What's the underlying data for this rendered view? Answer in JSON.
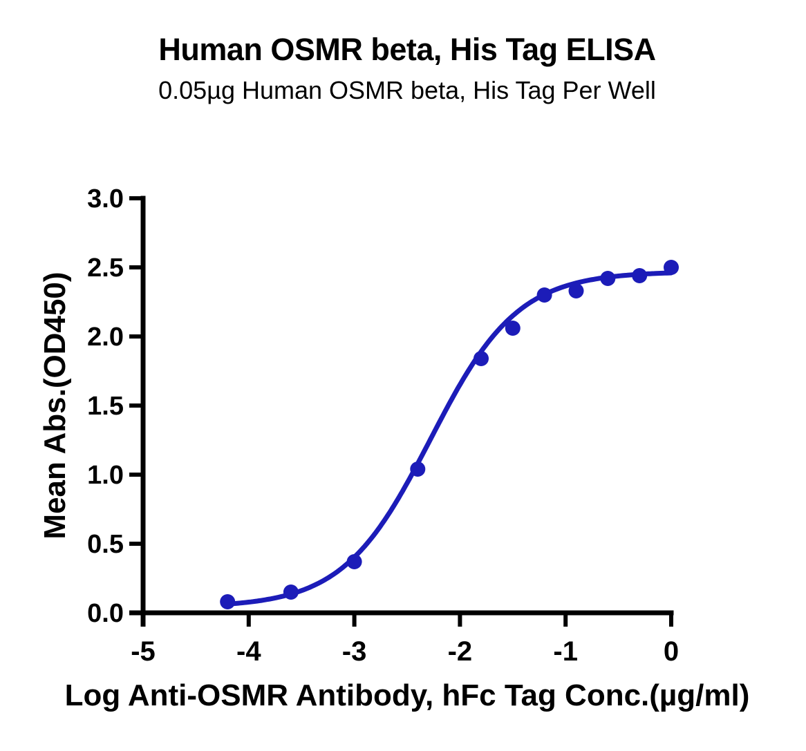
{
  "chart_data": {
    "type": "scatter",
    "title": "Human OSMR beta, His Tag ELISA",
    "subtitle": "0.05µg Human OSMR beta, His Tag Per Well",
    "xlabel": "Log Anti-OSMR Antibody, hFc Tag Conc.(µg/ml)",
    "ylabel": "Mean Abs.(OD450)",
    "xlim": [
      -5,
      0
    ],
    "ylim": [
      0,
      3
    ],
    "x_tick_labels": [
      "-5",
      "-4",
      "-3",
      "-2",
      "-1",
      "0"
    ],
    "y_tick_labels": [
      "0.0",
      "0.5",
      "1.0",
      "1.5",
      "2.0",
      "2.5",
      "3.0"
    ],
    "grid": false,
    "legend": false,
    "background_color": "#ffffff",
    "axis_color": "#000000",
    "series": [
      {
        "x": [
          -4.2,
          -3.6,
          -3.0,
          -2.4,
          -1.8,
          -1.5,
          -1.2,
          -0.9,
          -0.6,
          -0.3,
          0.0
        ],
        "y": [
          0.08,
          0.15,
          0.37,
          1.04,
          1.84,
          2.06,
          2.3,
          2.33,
          2.42,
          2.44,
          2.5
        ],
        "marker": "circle",
        "color": "#1C1CB8",
        "line": "4pl-fit-curve",
        "curve_fit_4pl": {
          "bottom": 0.04,
          "top": 2.47,
          "log_ec50": -2.28,
          "hill": 1.05
        }
      }
    ]
  }
}
